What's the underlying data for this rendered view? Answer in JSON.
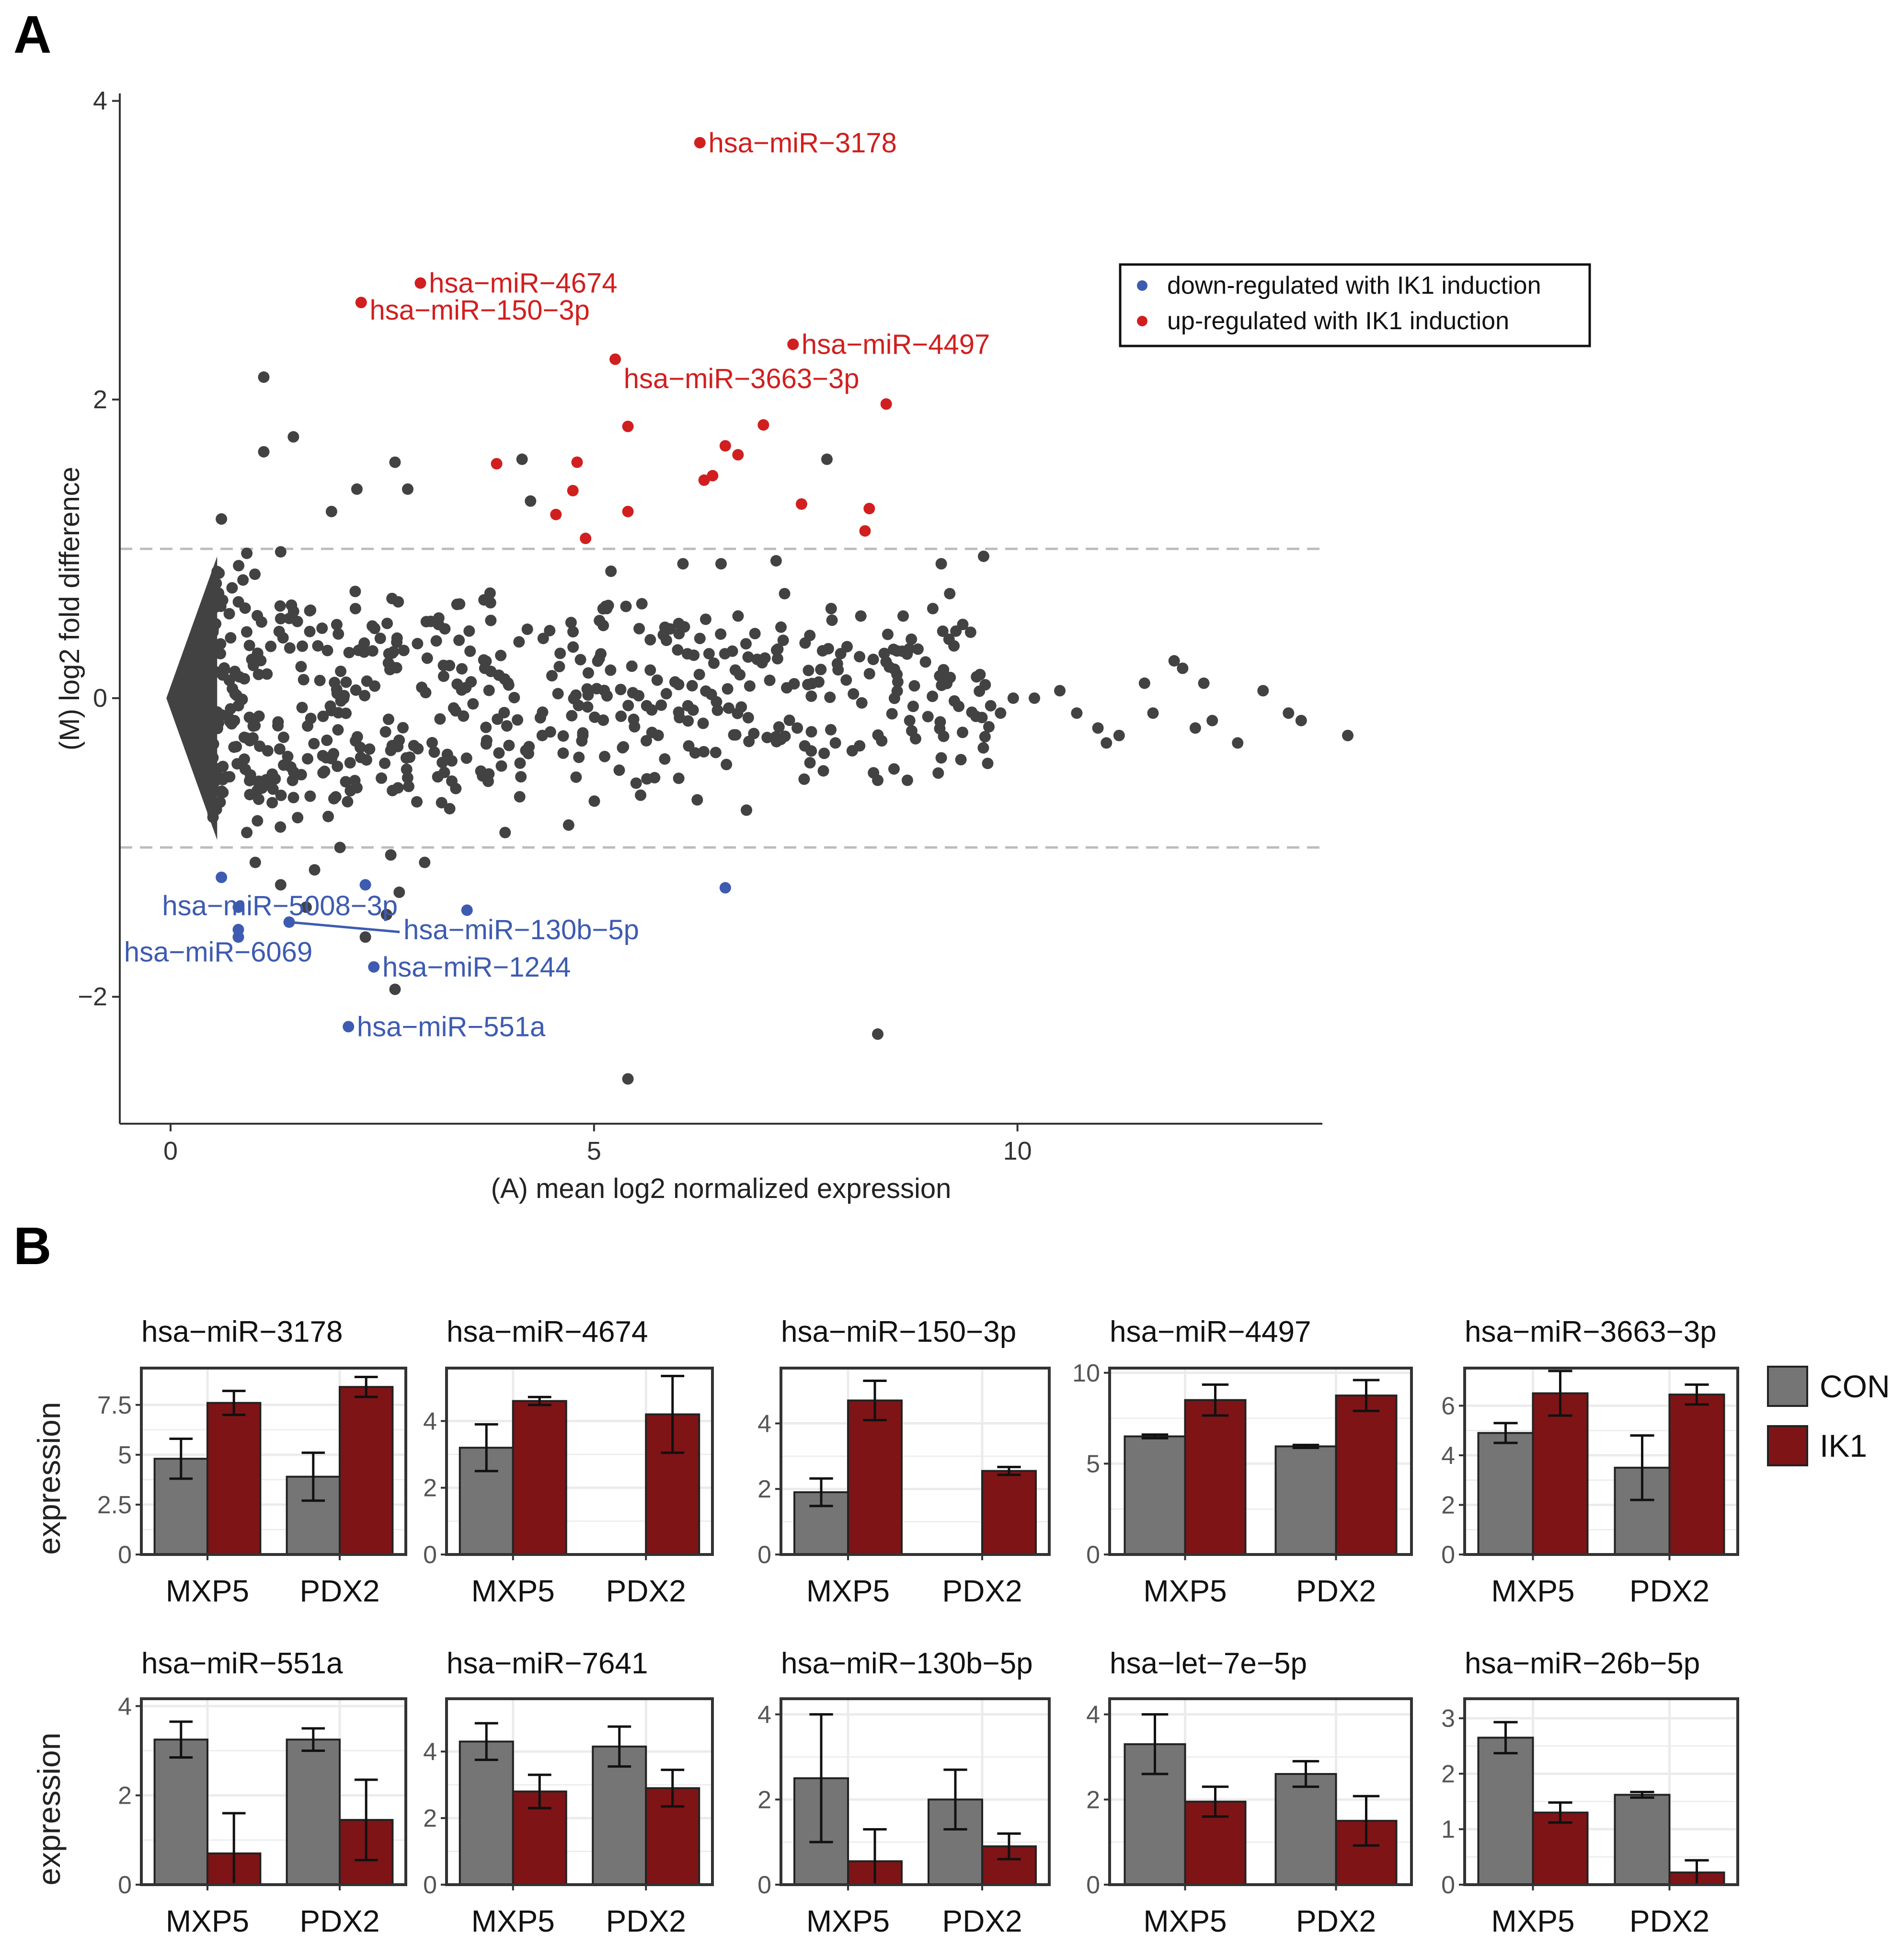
{
  "panel_letters": {
    "a": "A",
    "b": "B"
  },
  "colors": {
    "point": "#424242",
    "down": "#3d5bb0",
    "up": "#d11f1f",
    "con": "#757575",
    "ik1": "#7e1416",
    "grid": "#ebebeb",
    "dash": "#bdbdbd"
  },
  "chart_data": [
    {
      "type": "scatter",
      "title": "",
      "xlabel": "(A) mean log2 normalized expression",
      "ylabel": "(M) log2 fold difference",
      "xlim": [
        -0.6,
        13.6
      ],
      "ylim": [
        -2.85,
        4.05
      ],
      "xticks": [
        0,
        5,
        10
      ],
      "yticks": [
        -2,
        0,
        2,
        4
      ],
      "hlines": [
        -1,
        1
      ],
      "legend": {
        "position": "top-right",
        "items": [
          {
            "label": "down-regulated with IK1 induction",
            "color_key": "down"
          },
          {
            "label": "up-regulated with IK1 induction",
            "color_key": "up"
          }
        ]
      },
      "up_points": [
        [
          6.25,
          3.72
        ],
        [
          2.95,
          2.78
        ],
        [
          2.25,
          2.65
        ],
        [
          7.35,
          2.37
        ],
        [
          5.25,
          2.27
        ],
        [
          8.45,
          1.97
        ],
        [
          7.0,
          1.83
        ],
        [
          5.4,
          1.82
        ],
        [
          4.8,
          1.58
        ],
        [
          6.55,
          1.69
        ],
        [
          6.7,
          1.63
        ],
        [
          3.85,
          1.57
        ],
        [
          6.4,
          1.49
        ],
        [
          6.3,
          1.46
        ],
        [
          4.75,
          1.39
        ],
        [
          7.45,
          1.3
        ],
        [
          8.25,
          1.27
        ],
        [
          4.55,
          1.23
        ],
        [
          5.4,
          1.25
        ],
        [
          8.2,
          1.12
        ],
        [
          4.9,
          1.07
        ]
      ],
      "down_points": [
        [
          0.6,
          -1.2
        ],
        [
          2.3,
          -1.25
        ],
        [
          6.55,
          -1.27
        ],
        [
          0.8,
          -1.4
        ],
        [
          1.4,
          -1.5
        ],
        [
          3.5,
          -1.42
        ],
        [
          0.8,
          -1.55
        ],
        [
          0.8,
          -1.6
        ],
        [
          2.4,
          -1.8
        ],
        [
          2.1,
          -2.2
        ]
      ],
      "gray_points": [
        [
          1.1,
          2.15
        ],
        [
          1.1,
          1.65
        ],
        [
          1.45,
          1.75
        ],
        [
          2.2,
          1.4
        ],
        [
          2.65,
          1.58
        ],
        [
          2.8,
          1.4
        ],
        [
          1.9,
          1.25
        ],
        [
          0.6,
          1.2
        ],
        [
          4.15,
          1.6
        ],
        [
          4.25,
          1.32
        ],
        [
          7.75,
          1.6
        ],
        [
          9.6,
          0.95
        ],
        [
          9.1,
          0.9
        ],
        [
          6.05,
          0.9
        ],
        [
          6.5,
          0.9
        ],
        [
          7.15,
          0.92
        ],
        [
          0.9,
          0.97
        ],
        [
          1.3,
          0.98
        ],
        [
          5.2,
          0.85
        ],
        [
          9.0,
          0.6
        ],
        [
          9.2,
          0.7
        ],
        [
          9.25,
          0.35
        ],
        [
          8.65,
          0.55
        ],
        [
          7.25,
          0.7
        ],
        [
          7.8,
          0.6
        ],
        [
          8.15,
          0.55
        ],
        [
          5.15,
          0.6
        ],
        [
          6.0,
          0.5
        ],
        [
          6.25,
          0.4
        ],
        [
          4.4,
          0.4
        ],
        [
          4.6,
          0.3
        ],
        [
          10.2,
          0.0
        ],
        [
          10.5,
          0.05
        ],
        [
          10.7,
          -0.1
        ],
        [
          10.95,
          -0.2
        ],
        [
          11.05,
          -0.3
        ],
        [
          11.2,
          -0.25
        ],
        [
          11.5,
          0.1
        ],
        [
          11.6,
          -0.1
        ],
        [
          11.85,
          0.25
        ],
        [
          11.95,
          0.2
        ],
        [
          12.2,
          0.1
        ],
        [
          12.1,
          -0.2
        ],
        [
          12.3,
          -0.15
        ],
        [
          12.6,
          -0.3
        ],
        [
          12.9,
          0.05
        ],
        [
          13.2,
          -0.1
        ],
        [
          13.35,
          -0.15
        ],
        [
          13.9,
          -0.25
        ],
        [
          9.8,
          -0.1
        ],
        [
          9.95,
          0.0
        ],
        [
          9.1,
          -0.4
        ],
        [
          8.7,
          -0.55
        ],
        [
          8.3,
          -0.5
        ],
        [
          8.35,
          -0.55
        ],
        [
          7.85,
          -0.3
        ],
        [
          7.4,
          -0.2
        ],
        [
          6.8,
          -0.75
        ],
        [
          5.55,
          -0.65
        ],
        [
          4.7,
          -0.85
        ],
        [
          3.95,
          -0.9
        ],
        [
          3.2,
          -0.7
        ],
        [
          2.6,
          -0.35
        ],
        [
          2.2,
          -0.6
        ],
        [
          2.0,
          -1.0
        ],
        [
          2.6,
          -1.05
        ],
        [
          3.0,
          -1.1
        ],
        [
          2.7,
          -1.3
        ],
        [
          2.55,
          -1.45
        ],
        [
          2.3,
          -1.6
        ],
        [
          2.65,
          -1.95
        ],
        [
          8.35,
          -2.25
        ],
        [
          5.4,
          -2.55
        ],
        [
          1.6,
          -1.4
        ],
        [
          1.3,
          -1.25
        ],
        [
          1.7,
          -1.15
        ],
        [
          1.0,
          -1.1
        ],
        [
          0.9,
          -0.9
        ],
        [
          1.2,
          -0.7
        ],
        [
          1.5,
          -0.8
        ],
        [
          1.8,
          -0.5
        ]
      ],
      "labels": [
        {
          "text": "hsa−miR−3178",
          "group": "up",
          "x": 6.25,
          "y": 3.72,
          "lx": 6.35,
          "ly": 3.72,
          "anchor": "start"
        },
        {
          "text": "hsa−miR−4674",
          "group": "up",
          "x": 2.95,
          "y": 2.78,
          "lx": 3.05,
          "ly": 2.78,
          "anchor": "start"
        },
        {
          "text": "hsa−miR−150−3p",
          "group": "up",
          "x": 2.25,
          "y": 2.65,
          "lx": 2.35,
          "ly": 2.6,
          "anchor": "start"
        },
        {
          "text": "hsa−miR−4497",
          "group": "up",
          "x": 7.35,
          "y": 2.37,
          "lx": 7.45,
          "ly": 2.37,
          "anchor": "start"
        },
        {
          "text": "hsa−miR−3663−3p",
          "group": "up",
          "x": 5.25,
          "y": 2.27,
          "lx": 5.35,
          "ly": 2.14,
          "anchor": "start"
        },
        {
          "text": "hsa−miR−5008−3p",
          "group": "down",
          "x": 0.8,
          "y": -1.4,
          "lx": -0.1,
          "ly": -1.39,
          "anchor": "start"
        },
        {
          "text": "hsa−miR−130b−5p",
          "group": "down",
          "x": 1.4,
          "y": -1.5,
          "lx": 2.75,
          "ly": -1.55,
          "anchor": "start"
        },
        {
          "text": "hsa−miR−6069",
          "group": "down",
          "x": 0.8,
          "y": -1.6,
          "lx": -0.55,
          "ly": -1.7,
          "anchor": "start"
        },
        {
          "text": "hsa−miR−1244",
          "group": "down",
          "x": 2.4,
          "y": -1.8,
          "lx": 2.5,
          "ly": -1.8,
          "anchor": "start"
        },
        {
          "text": "hsa−miR−551a",
          "group": "down",
          "x": 2.1,
          "y": -2.2,
          "lx": 2.2,
          "ly": -2.2,
          "anchor": "start"
        }
      ]
    },
    {
      "type": "bar",
      "ylabel": "expression",
      "categories": [
        "MXP5",
        "PDX2"
      ],
      "legend": {
        "position": "right",
        "items": [
          {
            "label": "CON",
            "color_key": "con"
          },
          {
            "label": "IK1",
            "color_key": "ik1"
          }
        ]
      },
      "facets": [
        {
          "title": "hsa−miR−3178",
          "ymax": 9.2,
          "yticks": [
            0,
            2.5,
            5,
            7.5
          ],
          "ytick_labels": [
            "0",
            "2.5",
            "5",
            "7.5"
          ],
          "con": [
            4.8,
            3.9
          ],
          "con_err": [
            1.0,
            1.2
          ],
          "ik1": [
            7.6,
            8.4
          ],
          "ik1_err": [
            0.6,
            0.5
          ]
        },
        {
          "title": "hsa−miR−4674",
          "ymax": 5.5,
          "yticks": [
            0,
            2,
            4
          ],
          "ytick_labels": [
            "0",
            "2",
            "4"
          ],
          "con": [
            3.2,
            0
          ],
          "con_err": [
            0.7,
            0
          ],
          "ik1": [
            4.6,
            4.2
          ],
          "ik1_err": [
            0.12,
            1.15
          ]
        },
        {
          "title": "hsa−miR−150−3p",
          "ymax": 5.6,
          "yticks": [
            0,
            2,
            4
          ],
          "ytick_labels": [
            "0",
            "2",
            "4"
          ],
          "con": [
            1.9,
            0
          ],
          "con_err": [
            0.42,
            0
          ],
          "ik1": [
            4.7,
            2.55
          ],
          "ik1_err": [
            0.6,
            0.12
          ]
        },
        {
          "title": "hsa−miR−4497",
          "ymax": 10.1,
          "yticks": [
            0,
            5,
            10
          ],
          "ytick_labels": [
            "0",
            "5",
            "10"
          ],
          "con": [
            6.5,
            5.95
          ],
          "con_err": [
            0.1,
            0.08
          ],
          "ik1": [
            8.5,
            8.75
          ],
          "ik1_err": [
            0.85,
            0.85
          ]
        },
        {
          "title": "hsa−miR−3663−3p",
          "ymax": 7.4,
          "yticks": [
            0,
            2,
            4,
            6
          ],
          "ytick_labels": [
            "0",
            "2",
            "4",
            "6"
          ],
          "con": [
            4.9,
            3.5
          ],
          "con_err": [
            0.4,
            1.3
          ],
          "ik1": [
            6.5,
            6.45
          ],
          "ik1_err": [
            0.9,
            0.4
          ]
        },
        {
          "title": "hsa−miR−551a",
          "ymax": 4.1,
          "yticks": [
            0,
            2,
            4
          ],
          "ytick_labels": [
            "0",
            "2",
            "4"
          ],
          "con": [
            3.25,
            3.25
          ],
          "con_err": [
            0.4,
            0.25
          ],
          "ik1": [
            0.7,
            1.45
          ],
          "ik1_err": [
            0.9,
            0.9
          ]
        },
        {
          "title": "hsa−miR−7641",
          "ymax": 5.5,
          "yticks": [
            0,
            2,
            4
          ],
          "ytick_labels": [
            "0",
            "2",
            "4"
          ],
          "con": [
            4.3,
            4.15
          ],
          "con_err": [
            0.55,
            0.6
          ],
          "ik1": [
            2.8,
            2.9
          ],
          "ik1_err": [
            0.5,
            0.55
          ]
        },
        {
          "title": "hsa−miR−130b−5p",
          "ymax": 4.3,
          "yticks": [
            0,
            2,
            4
          ],
          "ytick_labels": [
            "0",
            "2",
            "4"
          ],
          "con": [
            2.5,
            2.0
          ],
          "con_err": [
            1.5,
            0.7
          ],
          "ik1": [
            0.55,
            0.9
          ],
          "ik1_err": [
            0.75,
            0.3
          ]
        },
        {
          "title": "hsa−let−7e−5p",
          "ymax": 4.3,
          "yticks": [
            0,
            2,
            4
          ],
          "ytick_labels": [
            "0",
            "2",
            "4"
          ],
          "con": [
            3.3,
            2.6
          ],
          "con_err": [
            0.7,
            0.3
          ],
          "ik1": [
            1.95,
            1.5
          ],
          "ik1_err": [
            0.35,
            0.58
          ]
        },
        {
          "title": "hsa−miR−26b−5p",
          "ymax": 3.3,
          "yticks": [
            0,
            1,
            2,
            3
          ],
          "ytick_labels": [
            "0",
            "1",
            "2",
            "3"
          ],
          "con": [
            2.65,
            1.62
          ],
          "con_err": [
            0.28,
            0.05
          ],
          "ik1": [
            1.3,
            0.22
          ],
          "ik1_err": [
            0.18,
            0.22
          ]
        }
      ]
    }
  ]
}
